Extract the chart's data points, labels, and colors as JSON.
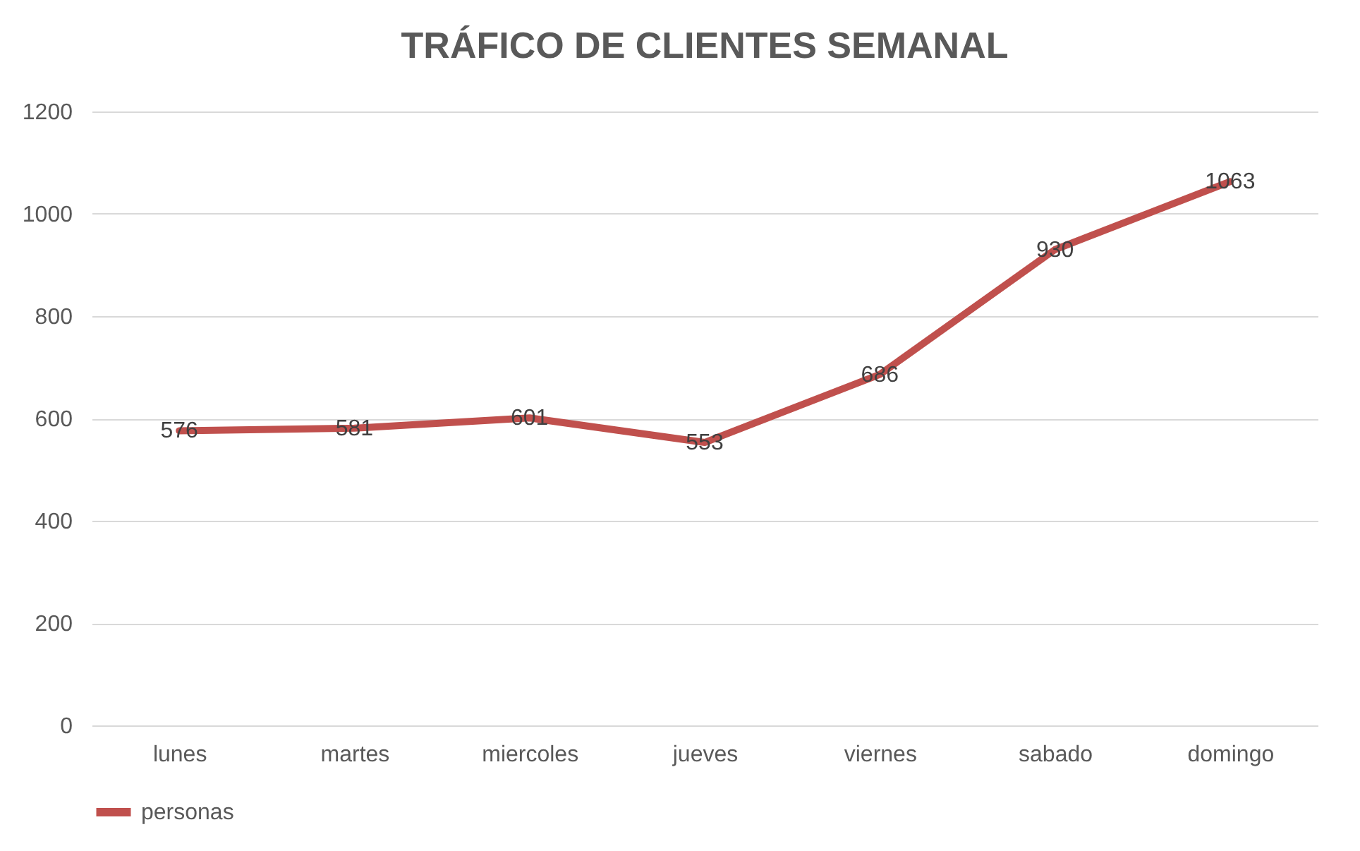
{
  "chart_data": {
    "type": "line",
    "title": "TRÁFICO DE CLIENTES SEMANAL",
    "categories": [
      "lunes",
      "martes",
      "miercoles",
      "jueves",
      "viernes",
      "sabado",
      "domingo"
    ],
    "series": [
      {
        "name": "personas",
        "color": "#c0504d",
        "values": [
          576,
          581,
          601,
          553,
          686,
          930,
          1063
        ]
      }
    ],
    "ylim": [
      0,
      1200
    ],
    "yticks": [
      0,
      200,
      400,
      600,
      800,
      1000,
      1200
    ],
    "grid": "y",
    "legend": "bottom",
    "data_labels": true,
    "marker": "none",
    "line_style": "solid"
  }
}
